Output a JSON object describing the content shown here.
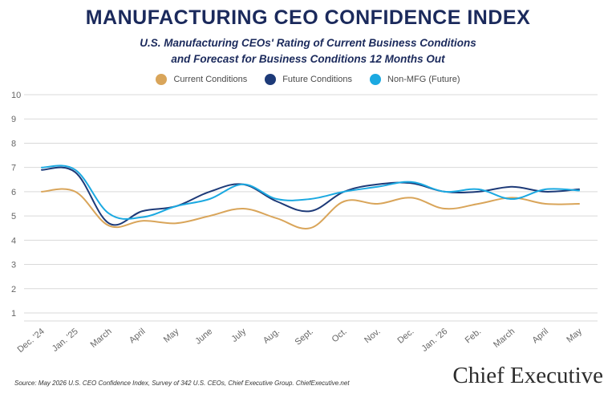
{
  "title": "MANUFACTURING CEO CONFIDENCE INDEX",
  "subtitle_line1": "U.S. Manufacturing CEOs' Rating of Current Business Conditions",
  "subtitle_line2": "and Forecast for Business Conditions 12 Months Out",
  "legend": [
    {
      "label": "Current Conditions",
      "color": "#d9a55a"
    },
    {
      "label": "Future Conditions",
      "color": "#1d3a78"
    },
    {
      "label": "Non-MFG (Future)",
      "color": "#1ba9e1"
    }
  ],
  "source": "Source: May 2026 U.S. CEO Confidence Index, Survey of 342 U.S. CEOs, Chief Executive Group. ChiefExecutive.net",
  "brand": "Chief Executive",
  "chart_data": {
    "type": "line",
    "categories": [
      "Dec. '24",
      "Jan. '25",
      "March",
      "April",
      "May",
      "June",
      "July",
      "Aug.",
      "Sept.",
      "Oct.",
      "Nov.",
      "Dec.",
      "Jan. '26",
      "Feb.",
      "March",
      "April",
      "May"
    ],
    "yticks": [
      1,
      2,
      3,
      4,
      5,
      6,
      7,
      8,
      9,
      10
    ],
    "ylim": [
      0.8,
      10.2
    ],
    "grid": true,
    "legend_position": "top-center",
    "series": [
      {
        "name": "Current Conditions",
        "color": "#d9a55a",
        "values": [
          6.0,
          6.0,
          4.6,
          4.8,
          4.7,
          5.0,
          5.3,
          4.9,
          4.5,
          5.6,
          5.5,
          5.75,
          5.3,
          5.5,
          5.75,
          5.5,
          5.5
        ]
      },
      {
        "name": "Future Conditions",
        "color": "#1d3a78",
        "values": [
          6.9,
          6.8,
          4.7,
          5.2,
          5.4,
          6.0,
          6.3,
          5.6,
          5.2,
          6.0,
          6.3,
          6.35,
          6.0,
          6.0,
          6.2,
          6.0,
          6.1
        ]
      },
      {
        "name": "Non-MFG (Future)",
        "color": "#1ba9e1",
        "values": [
          7.0,
          6.9,
          5.1,
          4.95,
          5.4,
          5.7,
          6.3,
          5.7,
          5.7,
          6.0,
          6.2,
          6.4,
          6.0,
          6.1,
          5.7,
          6.1,
          6.05
        ]
      }
    ]
  }
}
